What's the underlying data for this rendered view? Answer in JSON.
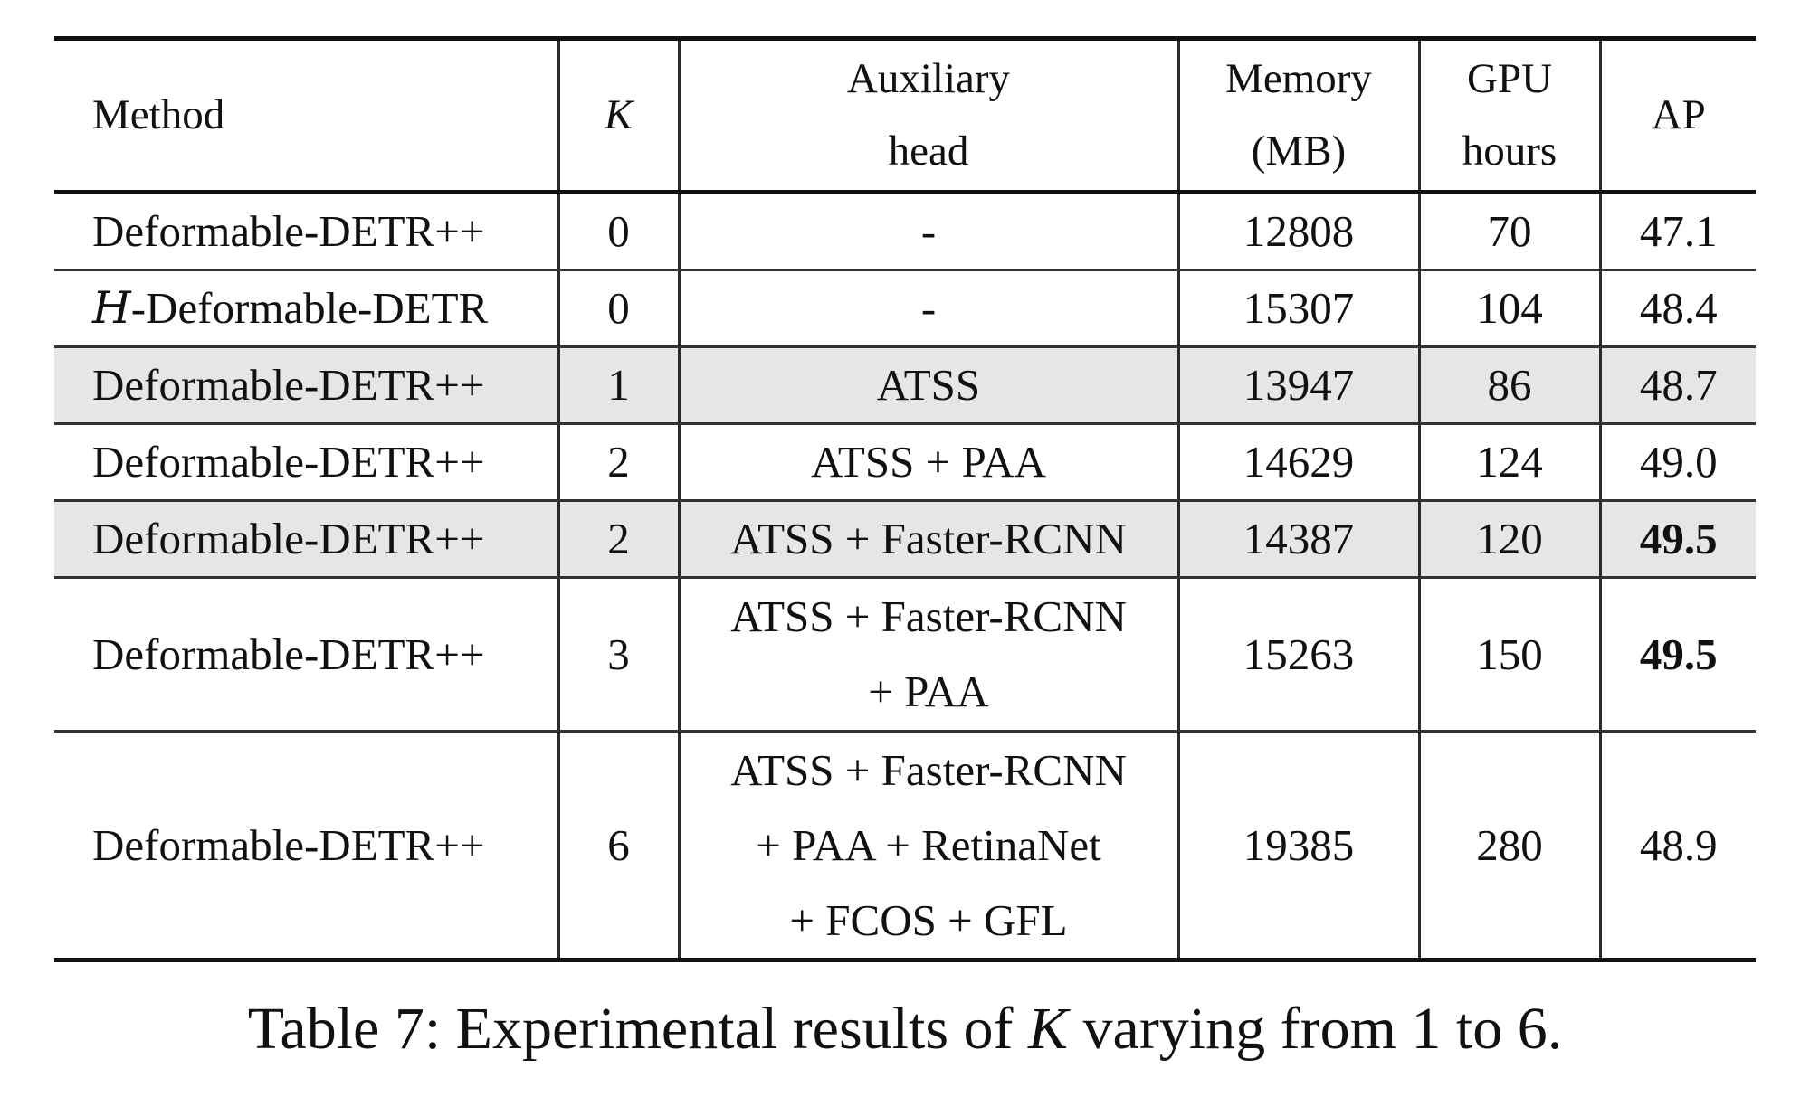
{
  "table": {
    "headers": {
      "method": "Method",
      "k": "K",
      "aux_line1": "Auxiliary",
      "aux_line2": "head",
      "mem_line1": "Memory",
      "mem_line2": "(MB)",
      "gpu_line1": "GPU",
      "gpu_line2": "hours",
      "ap": "AP"
    },
    "rows": [
      {
        "method": "Deformable-DETR++",
        "k": "0",
        "aux": [
          "-"
        ],
        "memory": "12808",
        "gpu_hours": "70",
        "ap": "47.1"
      },
      {
        "method_prefix": "H",
        "method": "-Deformable-DETR",
        "k": "0",
        "aux": [
          "-"
        ],
        "memory": "15307",
        "gpu_hours": "104",
        "ap": "48.4"
      },
      {
        "method": "Deformable-DETR++",
        "k": "1",
        "aux": [
          "ATSS"
        ],
        "memory": "13947",
        "gpu_hours": "86",
        "ap": "48.7"
      },
      {
        "method": "Deformable-DETR++",
        "k": "2",
        "aux": [
          "ATSS + PAA"
        ],
        "memory": "14629",
        "gpu_hours": "124",
        "ap": "49.0"
      },
      {
        "method": "Deformable-DETR++",
        "k": "2",
        "aux": [
          "ATSS + Faster-RCNN"
        ],
        "memory": "14387",
        "gpu_hours": "120",
        "ap": "49.5"
      },
      {
        "method": "Deformable-DETR++",
        "k": "3",
        "aux": [
          "ATSS + Faster-RCNN",
          "+ PAA"
        ],
        "memory": "15263",
        "gpu_hours": "150",
        "ap": "49.5"
      },
      {
        "method": "Deformable-DETR++",
        "k": "6",
        "aux": [
          "ATSS + Faster-RCNN",
          "+ PAA + RetinaNet",
          "+ FCOS + GFL"
        ],
        "memory": "19385",
        "gpu_hours": "280",
        "ap": "48.9"
      }
    ]
  },
  "caption": {
    "prefix": "Table 7: Experimental results of ",
    "kvar": "K",
    "suffix": " varying from 1 to 6."
  }
}
